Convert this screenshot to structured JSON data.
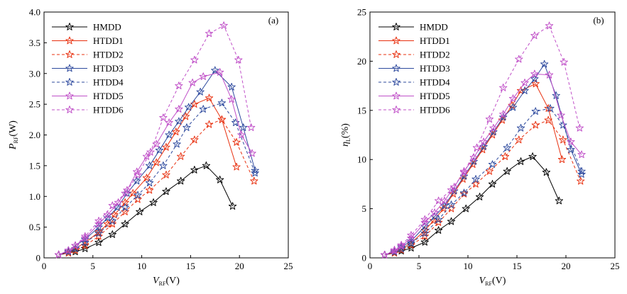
{
  "styles": {
    "HMDD": {
      "color": "#000000",
      "dash": ""
    },
    "HTDD1": {
      "color": "#e8300f",
      "dash": ""
    },
    "HTDD2": {
      "color": "#e8300f",
      "dash": "4,3"
    },
    "HTDD3": {
      "color": "#2e4a9e",
      "dash": ""
    },
    "HTDD4": {
      "color": "#2e4a9e",
      "dash": "4,3"
    },
    "HTDD5": {
      "color": "#c050c8",
      "dash": ""
    },
    "HTDD6": {
      "color": "#c050c8",
      "dash": "4,3"
    }
  },
  "chart_data": [
    {
      "type": "line",
      "panel_label": "(a)",
      "xlabel": {
        "var": "V",
        "sub": "RF",
        "unit": "(V)"
      },
      "ylabel": {
        "var": "P",
        "sub": "RF",
        "unit": "(W)"
      },
      "xlim": [
        0,
        25
      ],
      "ylim": [
        0,
        4.0
      ],
      "xticks": [
        "0",
        "5",
        "10",
        "15",
        "20",
        "25"
      ],
      "yticks": [
        "0",
        "0.5",
        "1.0",
        "1.5",
        "2.0",
        "2.5",
        "3.0",
        "3.5",
        "4.0"
      ],
      "legend_position": "top-left",
      "series": [
        {
          "name": "HMDD",
          "points": [
            [
              1.5,
              0.05
            ],
            [
              2.5,
              0.08
            ],
            [
              3.2,
              0.1
            ],
            [
              4.2,
              0.15
            ],
            [
              5.6,
              0.25
            ],
            [
              7,
              0.38
            ],
            [
              8.3,
              0.55
            ],
            [
              9.8,
              0.75
            ],
            [
              11.2,
              0.9
            ],
            [
              12.5,
              1.08
            ],
            [
              14,
              1.25
            ],
            [
              15.4,
              1.43
            ],
            [
              16.6,
              1.5
            ],
            [
              18,
              1.27
            ],
            [
              19.3,
              0.84
            ]
          ]
        },
        {
          "name": "HTDD1",
          "points": [
            [
              1.5,
              0.05
            ],
            [
              2.5,
              0.1
            ],
            [
              3.2,
              0.15
            ],
            [
              4.2,
              0.25
            ],
            [
              5.6,
              0.42
            ],
            [
              6.5,
              0.55
            ],
            [
              7.2,
              0.7
            ],
            [
              8.3,
              0.9
            ],
            [
              9.1,
              1.05
            ],
            [
              10.5,
              1.3
            ],
            [
              11.5,
              1.55
            ],
            [
              12.5,
              1.8
            ],
            [
              13.5,
              2.05
            ],
            [
              14.5,
              2.3
            ],
            [
              15.4,
              2.5
            ],
            [
              16.9,
              2.6
            ],
            [
              18.2,
              2.25
            ],
            [
              19.7,
              1.48
            ]
          ]
        },
        {
          "name": "HTDD2",
          "points": [
            [
              1.5,
              0.05
            ],
            [
              2.5,
              0.08
            ],
            [
              3.2,
              0.12
            ],
            [
              4.2,
              0.2
            ],
            [
              5.6,
              0.35
            ],
            [
              7,
              0.55
            ],
            [
              8.3,
              0.75
            ],
            [
              9.6,
              0.95
            ],
            [
              10.8,
              1.1
            ],
            [
              12.5,
              1.35
            ],
            [
              14,
              1.65
            ],
            [
              15.4,
              1.92
            ],
            [
              16.9,
              2.17
            ],
            [
              18.2,
              2.25
            ],
            [
              19.7,
              1.88
            ],
            [
              21.5,
              1.25
            ]
          ]
        },
        {
          "name": "HTDD3",
          "points": [
            [
              1.5,
              0.05
            ],
            [
              2.5,
              0.12
            ],
            [
              3.2,
              0.2
            ],
            [
              4.2,
              0.3
            ],
            [
              5.6,
              0.5
            ],
            [
              6.5,
              0.65
            ],
            [
              7.5,
              0.82
            ],
            [
              8.5,
              1.05
            ],
            [
              9.5,
              1.25
            ],
            [
              10.8,
              1.5
            ],
            [
              11.8,
              1.75
            ],
            [
              12.8,
              2.0
            ],
            [
              13.8,
              2.22
            ],
            [
              14.8,
              2.45
            ],
            [
              16,
              2.7
            ],
            [
              17.5,
              3.05
            ],
            [
              19.2,
              2.78
            ],
            [
              20.4,
              2.12
            ],
            [
              21.6,
              1.42
            ]
          ]
        },
        {
          "name": "HTDD4",
          "points": [
            [
              1.5,
              0.05
            ],
            [
              2.5,
              0.1
            ],
            [
              3.2,
              0.15
            ],
            [
              4.2,
              0.25
            ],
            [
              5.6,
              0.4
            ],
            [
              7,
              0.6
            ],
            [
              8.3,
              0.82
            ],
            [
              9.6,
              1.02
            ],
            [
              10.8,
              1.22
            ],
            [
              12.2,
              1.5
            ],
            [
              13.6,
              1.85
            ],
            [
              14.6,
              2.12
            ],
            [
              16.3,
              2.42
            ],
            [
              18.2,
              2.52
            ],
            [
              19.6,
              2.2
            ],
            [
              21.6,
              1.38
            ]
          ]
        },
        {
          "name": "HTDD5",
          "points": [
            [
              1.5,
              0.05
            ],
            [
              2.5,
              0.12
            ],
            [
              3.2,
              0.2
            ],
            [
              4.2,
              0.32
            ],
            [
              5.6,
              0.55
            ],
            [
              6.5,
              0.7
            ],
            [
              7.6,
              0.9
            ],
            [
              8.5,
              1.1
            ],
            [
              9.5,
              1.4
            ],
            [
              10.5,
              1.65
            ],
            [
              11.5,
              1.85
            ],
            [
              12.8,
              2.2
            ],
            [
              13.8,
              2.42
            ],
            [
              15.2,
              2.85
            ],
            [
              16.3,
              2.95
            ],
            [
              18,
              3.02
            ],
            [
              19.2,
              2.58
            ],
            [
              20.2,
              2.0
            ],
            [
              21.3,
              1.7
            ]
          ]
        },
        {
          "name": "HTDD6",
          "points": [
            [
              1.5,
              0.05
            ],
            [
              2.5,
              0.12
            ],
            [
              3.2,
              0.2
            ],
            [
              4.2,
              0.35
            ],
            [
              5.6,
              0.6
            ],
            [
              7,
              0.85
            ],
            [
              8.3,
              1.05
            ],
            [
              9.6,
              1.35
            ],
            [
              10.9,
              1.72
            ],
            [
              12.2,
              2.28
            ],
            [
              13.8,
              2.8
            ],
            [
              15.4,
              3.22
            ],
            [
              16.9,
              3.65
            ],
            [
              18.4,
              3.78
            ],
            [
              19.9,
              3.22
            ],
            [
              21.2,
              2.12
            ]
          ]
        }
      ]
    },
    {
      "type": "line",
      "panel_label": "(b)",
      "xlabel": {
        "var": "V",
        "sub": "RF",
        "unit": "(V)"
      },
      "ylabel": {
        "var": "η",
        "sub": "L",
        "unit": "(%)"
      },
      "xlim": [
        0,
        25
      ],
      "ylim": [
        0,
        25
      ],
      "xticks": [
        "0",
        "5",
        "10",
        "15",
        "20",
        "25"
      ],
      "yticks": [
        "0",
        "5",
        "10",
        "15",
        "20",
        "25"
      ],
      "legend_position": "top-left",
      "series": [
        {
          "name": "HMDD",
          "points": [
            [
              1.5,
              0.3
            ],
            [
              2.5,
              0.5
            ],
            [
              3.2,
              0.7
            ],
            [
              4.2,
              1.0
            ],
            [
              5.6,
              1.6
            ],
            [
              7,
              2.8
            ],
            [
              8.3,
              3.7
            ],
            [
              9.8,
              5.0
            ],
            [
              11.2,
              6.2
            ],
            [
              12.5,
              7.5
            ],
            [
              14,
              8.8
            ],
            [
              15.4,
              9.8
            ],
            [
              16.6,
              10.3
            ],
            [
              18,
              8.7
            ],
            [
              19.3,
              5.8
            ]
          ]
        },
        {
          "name": "HTDD1",
          "points": [
            [
              1.5,
              0.3
            ],
            [
              2.5,
              0.6
            ],
            [
              3.2,
              0.9
            ],
            [
              4.2,
              1.5
            ],
            [
              5.6,
              2.8
            ],
            [
              6.5,
              3.8
            ],
            [
              7.5,
              5.0
            ],
            [
              8.5,
              6.5
            ],
            [
              9.5,
              8.0
            ],
            [
              10.5,
              9.5
            ],
            [
              11.5,
              11.0
            ],
            [
              12.5,
              12.5
            ],
            [
              13.5,
              14.0
            ],
            [
              14.5,
              15.5
            ],
            [
              15.4,
              17.0
            ],
            [
              16.9,
              17.7
            ],
            [
              18.2,
              15.2
            ],
            [
              19.6,
              10.0
            ]
          ]
        },
        {
          "name": "HTDD2",
          "points": [
            [
              1.5,
              0.3
            ],
            [
              2.5,
              0.5
            ],
            [
              3.2,
              0.8
            ],
            [
              4.2,
              1.3
            ],
            [
              5.6,
              2.2
            ],
            [
              7,
              3.6
            ],
            [
              8.3,
              5.0
            ],
            [
              9.6,
              6.5
            ],
            [
              10.8,
              7.5
            ],
            [
              12.2,
              8.8
            ],
            [
              13.8,
              10.3
            ],
            [
              15.2,
              12.0
            ],
            [
              16.9,
              13.5
            ],
            [
              18.2,
              14.0
            ],
            [
              19.7,
              12.0
            ],
            [
              21.5,
              7.8
            ]
          ]
        },
        {
          "name": "HTDD3",
          "points": [
            [
              1.5,
              0.3
            ],
            [
              2.5,
              0.7
            ],
            [
              3.2,
              1.1
            ],
            [
              4.2,
              1.7
            ],
            [
              5.6,
              3.2
            ],
            [
              6.6,
              4.2
            ],
            [
              7.6,
              5.3
            ],
            [
              8.6,
              6.8
            ],
            [
              9.6,
              8.3
            ],
            [
              10.6,
              9.8
            ],
            [
              11.6,
              11.3
            ],
            [
              12.6,
              12.8
            ],
            [
              13.6,
              14.3
            ],
            [
              14.6,
              15.3
            ],
            [
              15.8,
              17.0
            ],
            [
              16.8,
              18.2
            ],
            [
              17.8,
              19.7
            ],
            [
              19,
              16.5
            ],
            [
              20.5,
              11.0
            ],
            [
              21.6,
              8.5
            ]
          ]
        },
        {
          "name": "HTDD4",
          "points": [
            [
              1.5,
              0.3
            ],
            [
              2.5,
              0.6
            ],
            [
              3.2,
              0.9
            ],
            [
              4.2,
              1.5
            ],
            [
              5.6,
              2.5
            ],
            [
              7,
              3.9
            ],
            [
              8.3,
              5.4
            ],
            [
              9.6,
              6.6
            ],
            [
              10.8,
              8.0
            ],
            [
              12.5,
              9.5
            ],
            [
              14,
              11.2
            ],
            [
              15.4,
              13.2
            ],
            [
              16.9,
              14.9
            ],
            [
              18.4,
              15.2
            ],
            [
              19.7,
              13.5
            ],
            [
              21.6,
              8.8
            ]
          ]
        },
        {
          "name": "HTDD5",
          "points": [
            [
              1.5,
              0.3
            ],
            [
              2.5,
              0.7
            ],
            [
              3.2,
              1.2
            ],
            [
              4.2,
              2.0
            ],
            [
              5.6,
              3.6
            ],
            [
              6.6,
              4.6
            ],
            [
              7.6,
              5.8
            ],
            [
              8.6,
              7.2
            ],
            [
              9.6,
              8.8
            ],
            [
              10.6,
              10.2
            ],
            [
              11.6,
              11.8
            ],
            [
              12.6,
              13.2
            ],
            [
              13.6,
              14.6
            ],
            [
              14.6,
              16.2
            ],
            [
              15.8,
              17.8
            ],
            [
              16.8,
              18.7
            ],
            [
              18.3,
              18.6
            ],
            [
              19.5,
              14.5
            ],
            [
              20.5,
              11.8
            ],
            [
              21.6,
              10.5
            ]
          ]
        },
        {
          "name": "HTDD6",
          "points": [
            [
              1.5,
              0.3
            ],
            [
              2.5,
              0.8
            ],
            [
              3.2,
              1.3
            ],
            [
              4.2,
              2.3
            ],
            [
              5.6,
              3.9
            ],
            [
              7,
              5.8
            ],
            [
              8.3,
              6.9
            ],
            [
              9.6,
              8.7
            ],
            [
              10.9,
              11.2
            ],
            [
              12.2,
              14.1
            ],
            [
              13.6,
              17.3
            ],
            [
              15.2,
              20.2
            ],
            [
              16.8,
              22.6
            ],
            [
              18.3,
              23.6
            ],
            [
              19.8,
              19.9
            ],
            [
              21.4,
              13.2
            ]
          ]
        }
      ]
    }
  ]
}
